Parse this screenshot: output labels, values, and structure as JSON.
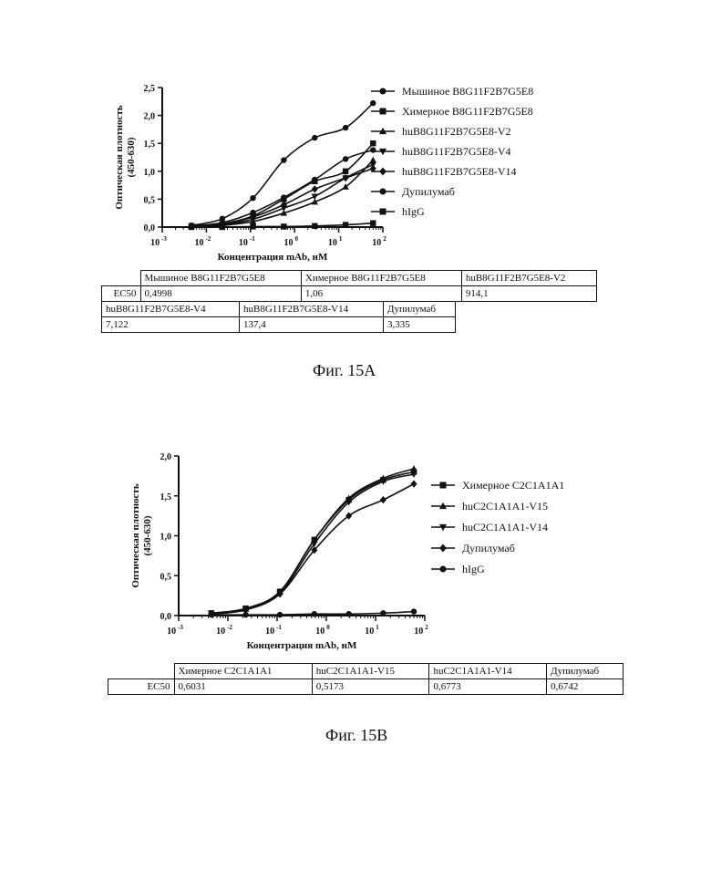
{
  "figures": [
    {
      "caption": "Фиг. 15A",
      "chart_data": {
        "type": "scatter",
        "xlabel": "Концентрация mAb, нМ",
        "ylabel": "Оптическая плотность (450-630)",
        "xscale": "log",
        "xlim": [
          0.001,
          100
        ],
        "ylim": [
          0,
          2.5
        ],
        "yticks": [
          "0,0",
          "0,5",
          "1,0",
          "1,5",
          "2,0",
          "2,5"
        ],
        "xticks": [
          {
            "base": "10",
            "exp": "-3"
          },
          {
            "base": "10",
            "exp": "-2"
          },
          {
            "base": "10",
            "exp": "-1"
          },
          {
            "base": "10",
            "exp": "0"
          },
          {
            "base": "10",
            "exp": "1"
          },
          {
            "base": "10",
            "exp": "2"
          }
        ],
        "legend_position": "right",
        "grid": false,
        "x": [
          0.0046,
          0.023,
          0.114,
          0.57,
          2.86,
          14.3,
          60
        ],
        "series": [
          {
            "name": "Мышиное B8G11F2B7G5E8",
            "marker": "circle",
            "values": [
              0.03,
              0.15,
              0.52,
              1.2,
              1.6,
              1.78,
              2.22
            ]
          },
          {
            "name": "Химерное B8G11F2B7G5E8",
            "marker": "square",
            "values": [
              0.02,
              0.06,
              0.2,
              0.5,
              0.82,
              1.0,
              1.5
            ]
          },
          {
            "name": "huB8G11F2B7G5E8-V2",
            "marker": "triangle-up",
            "values": [
              0.01,
              0.03,
              0.1,
              0.25,
              0.45,
              0.72,
              1.2
            ]
          },
          {
            "name": "huB8G11F2B7G5E8-V4",
            "marker": "triangle-down",
            "values": [
              0.01,
              0.04,
              0.14,
              0.34,
              0.55,
              0.88,
              1.12
            ]
          },
          {
            "name": "huB8G11F2B7G5E8-V14",
            "marker": "diamond",
            "values": [
              0.01,
              0.05,
              0.18,
              0.4,
              0.68,
              0.88,
              1.05
            ]
          },
          {
            "name": "Дупилумаб",
            "marker": "circle",
            "values": [
              0.02,
              0.08,
              0.26,
              0.53,
              0.85,
              1.22,
              1.38
            ]
          },
          {
            "name": "hIgG",
            "marker": "square",
            "values": [
              0.0,
              0.0,
              0.01,
              0.01,
              0.02,
              0.04,
              0.07
            ]
          }
        ]
      },
      "ec50_tables": [
        {
          "headers": [
            "",
            "Мышиное B8G11F2B7G5E8",
            "Химерное B8G11F2B7G5E8",
            "huB8G11F2B7G5E8-V2"
          ],
          "row": [
            "EC50",
            "0,4998",
            "1,06",
            "914,1"
          ]
        },
        {
          "headers": [
            "huB8G11F2B7G5E8-V4",
            "huB8G11F2B7G5E8-V14",
            "Дупилумаб"
          ],
          "row": [
            "7,122",
            "137,4",
            "3,335"
          ]
        }
      ]
    },
    {
      "caption": "Фиг. 15B",
      "chart_data": {
        "type": "scatter",
        "xlabel": "Концентрация mAb, нМ",
        "ylabel": "Оптическая плотность (450-630)",
        "xscale": "log",
        "xlim": [
          0.001,
          100
        ],
        "ylim": [
          0,
          2.0
        ],
        "yticks": [
          "0,0",
          "0,5",
          "1,0",
          "1,5",
          "2,0"
        ],
        "xticks": [
          {
            "base": "10",
            "exp": "-3"
          },
          {
            "base": "10",
            "exp": "-2"
          },
          {
            "base": "10",
            "exp": "-1"
          },
          {
            "base": "10",
            "exp": "0"
          },
          {
            "base": "10",
            "exp": "1"
          },
          {
            "base": "10",
            "exp": "2"
          }
        ],
        "legend_position": "right",
        "grid": false,
        "x": [
          0.0046,
          0.023,
          0.114,
          0.57,
          2.86,
          14.3,
          60
        ],
        "series": [
          {
            "name": "Химерное C2C1A1A1",
            "marker": "square",
            "values": [
              0.03,
              0.09,
              0.3,
              0.95,
              1.45,
              1.7,
              1.8
            ]
          },
          {
            "name": "huC2C1A1A1-V15",
            "marker": "triangle-up",
            "values": [
              0.03,
              0.08,
              0.3,
              0.95,
              1.47,
              1.72,
              1.84
            ]
          },
          {
            "name": "huC2C1A1A1-V14",
            "marker": "triangle-down",
            "values": [
              0.03,
              0.08,
              0.28,
              0.9,
              1.42,
              1.68,
              1.77
            ]
          },
          {
            "name": "Дупилумаб",
            "marker": "diamond",
            "values": [
              0.02,
              0.07,
              0.27,
              0.82,
              1.25,
              1.45,
              1.65
            ]
          },
          {
            "name": "hIgG",
            "marker": "circle",
            "values": [
              0.01,
              0.01,
              0.01,
              0.02,
              0.02,
              0.03,
              0.05
            ]
          }
        ]
      },
      "ec50_tables": [
        {
          "headers": [
            "",
            "Химерное C2C1A1A1",
            "huC2C1A1A1-V15",
            "huC2C1A1A1-V14",
            "Дупилумаб"
          ],
          "row": [
            "EC50",
            "0,6031",
            "0,5173",
            "0,6773",
            "0,6742"
          ]
        }
      ]
    }
  ]
}
